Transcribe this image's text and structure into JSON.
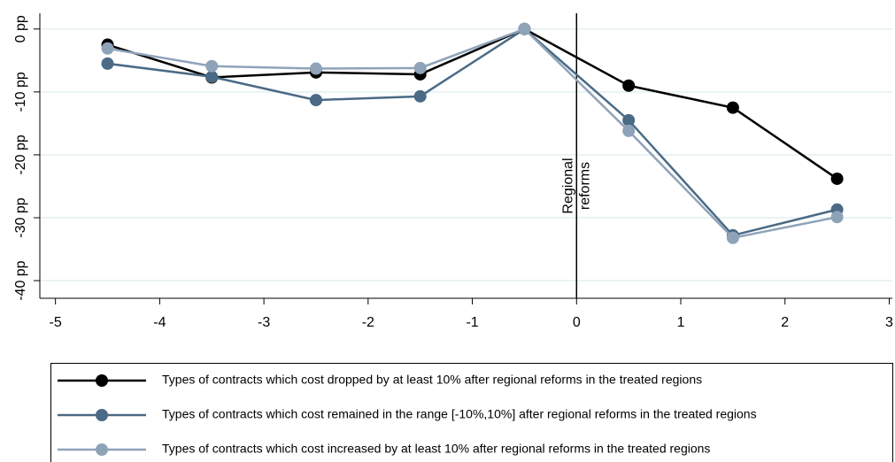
{
  "chart_data": {
    "type": "line",
    "x": [
      -4.5,
      -3.5,
      -2.5,
      -1.5,
      -0.5,
      0.5,
      1.5,
      2.5
    ],
    "series": [
      {
        "name": "Types of contracts which cost dropped by at least 10% after regional reforms in the treated regions",
        "color": "#000000",
        "values": [
          -2.5,
          -7.7,
          -6.9,
          -7.2,
          0,
          -9.0,
          -12.5,
          -23.8
        ]
      },
      {
        "name": "Types of contracts which cost remained in the range [-10%,10%] after regional reforms in the treated regions",
        "color": "#4a6a85",
        "values": [
          -5.5,
          -7.6,
          -11.3,
          -10.7,
          0,
          -14.5,
          -32.8,
          -28.7
        ]
      },
      {
        "name": "Types of contracts which cost increased by at least 10% after regional reforms in the treated regions",
        "color": "#8fa3b8",
        "values": [
          -3.1,
          -5.9,
          -6.3,
          -6.2,
          0,
          -16.2,
          -33.2,
          -29.9
        ]
      }
    ],
    "xlim": [
      -5.15,
      3.03
    ],
    "xticks": [
      -5,
      -4,
      -3,
      -2,
      -1,
      0,
      1,
      2,
      3
    ],
    "ylim": [
      -42.8,
      2.5
    ],
    "yticks": [
      {
        "value": 0,
        "label": "0 pp"
      },
      {
        "value": -10,
        "label": "-10 pp"
      },
      {
        "value": -20,
        "label": "-20 pp"
      },
      {
        "value": -30,
        "label": "-30 pp"
      },
      {
        "value": -40,
        "label": "-40 pp"
      }
    ],
    "grid": true,
    "vline": 0,
    "annotation": [
      "Regional",
      "reforms"
    ],
    "legend": "bottom"
  }
}
